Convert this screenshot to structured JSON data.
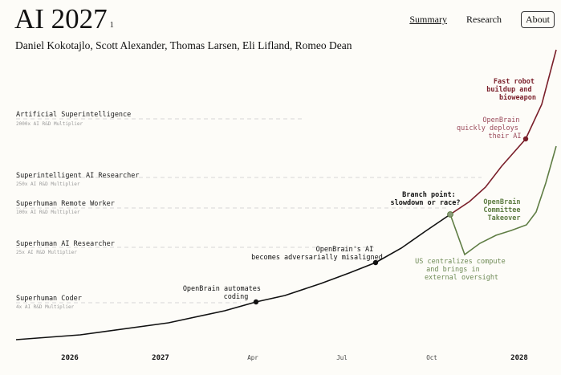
{
  "header": {
    "title": "AI 2027",
    "footnote": "1",
    "authors": "Daniel Kokotajlo, Scott Alexander, Thomas Larsen, Eli Lifland, Romeo Dean"
  },
  "nav": {
    "summary": "Summary",
    "research": "Research",
    "about": "About"
  },
  "chart_data": {
    "type": "line",
    "x_ticks": [
      "2026",
      "2027",
      "Apr",
      "Jul",
      "Oct",
      "2028"
    ],
    "milestones": [
      {
        "name": "Artificial Superintelligence",
        "multiplier": "2000x AI R&D Multiplier"
      },
      {
        "name": "Superintelligent AI Researcher",
        "multiplier": "250x AI R&D Multiplier"
      },
      {
        "name": "Superhuman Remote Worker",
        "multiplier": "100x AI R&D Multiplier"
      },
      {
        "name": "Superhuman AI Researcher",
        "multiplier": "25x AI R&D Multiplier"
      },
      {
        "name": "Superhuman Coder",
        "multiplier": "4x AI R&D Multiplier"
      }
    ],
    "annotations": {
      "automates": [
        "OpenBrain automates",
        "coding"
      ],
      "misaligned": [
        "OpenBrain's AI",
        "becomes adversarially misaligned"
      ],
      "branch": [
        "Branch point:",
        "slowdown or race?"
      ],
      "robot": [
        "Fast robot",
        "buildup and",
        "bioweapon"
      ],
      "deploy": [
        "OpenBrain",
        "quickly deploys",
        "their AI"
      ],
      "committee": [
        "OpenBrain",
        "Committee",
        "Takeover"
      ],
      "centralize": [
        "US centralizes compute",
        "and brings in",
        "external oversight"
      ]
    },
    "colors": {
      "main": "#111111",
      "race": "#7a1f2a",
      "race_label": "#9a4a5a",
      "slowdown": "#5f7d44",
      "slowdown_label": "#6e8a55",
      "milestone_label": "#222222",
      "multiplier_label": "#9a9a9a",
      "guide": "#d6d6d6"
    }
  }
}
